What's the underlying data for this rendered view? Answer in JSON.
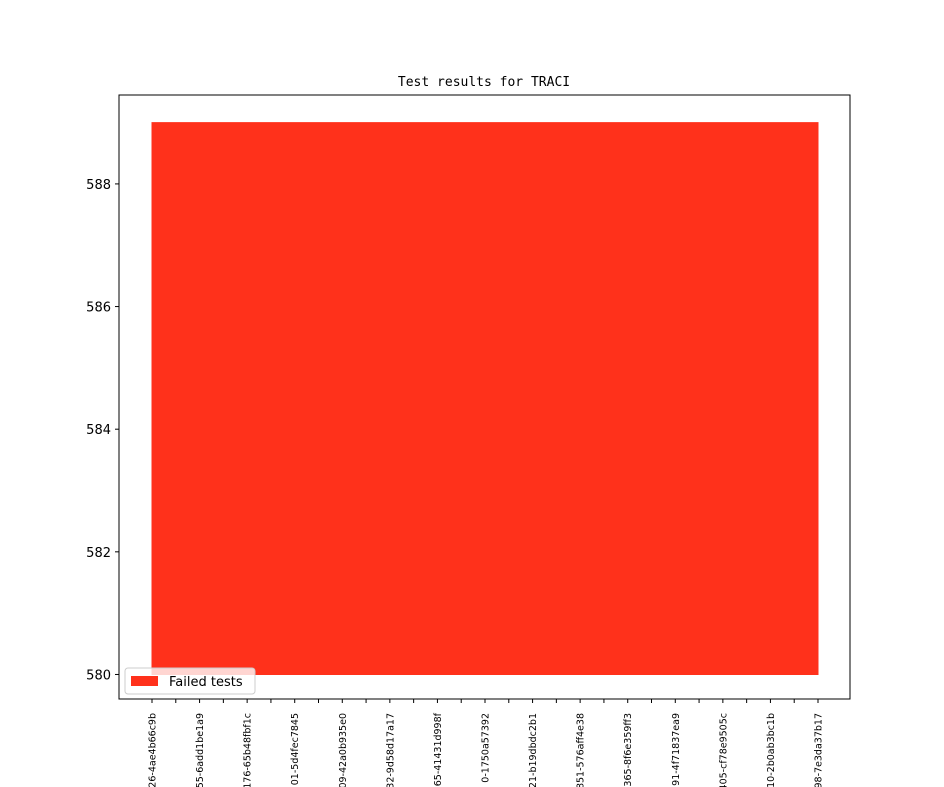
{
  "chart_data": {
    "type": "area",
    "title": "Test results for TRACI",
    "categories": [
      "26-4ae4b66c9b",
      null,
      "55-6add1be1a9",
      null,
      "176-65b48fbf1c",
      null,
      "01-5d4fec7845",
      null,
      "09-42a0b935e0",
      null,
      "32-9d58d17a17",
      null,
      "65-41431d998f",
      null,
      "0-1750a57392",
      null,
      "21-b19dbdc2b1",
      null,
      "851-576aff4e38",
      null,
      "365-8f6e359ff3",
      null,
      "91-4f71837ea9",
      null,
      "405-cf78e9505c",
      null,
      "10-2b0ab3bc1b",
      null,
      "98-7e3da37b17"
    ],
    "baseline": 580,
    "series": [
      {
        "name": "Failed tests",
        "color": "#ff311b",
        "values": [
          589,
          589,
          589,
          589,
          589,
          589,
          589,
          589,
          589,
          589,
          589,
          589,
          589,
          589,
          589,
          589,
          589,
          589,
          589,
          589,
          589,
          589,
          589,
          589,
          589,
          589,
          589,
          589,
          589
        ]
      }
    ],
    "ylim": [
      579.6,
      589.45
    ],
    "yticks": [
      580,
      582,
      584,
      586,
      588
    ],
    "legend": "lower left"
  }
}
